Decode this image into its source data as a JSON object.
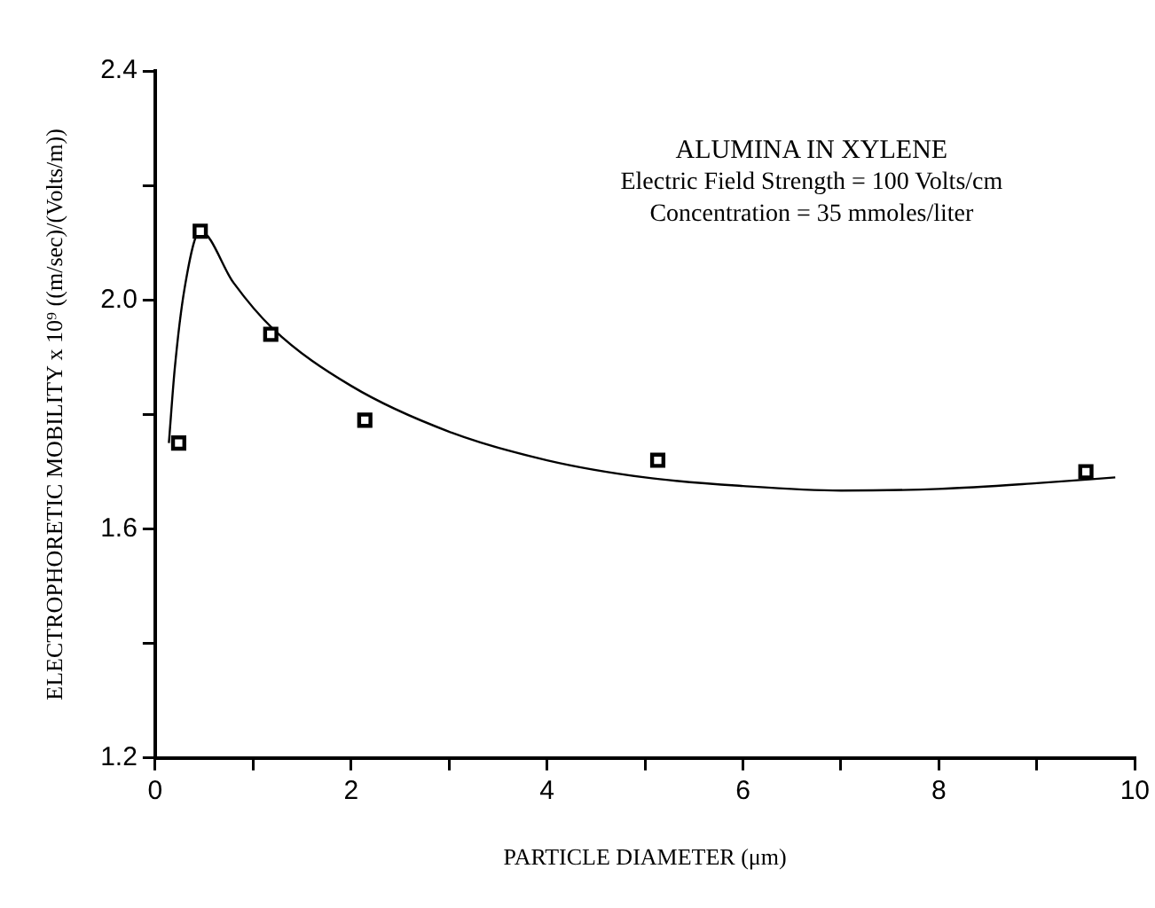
{
  "chart_data": {
    "type": "scatter",
    "xlabel": "PARTICLE DIAMETER (μm)",
    "ylabel": "ELECTROPHORETIC MOBILITY x 10⁹ ((m/sec)/(Volts/m))",
    "annotations": [
      "ALUMINA IN XYLENE",
      "Electric Field Strength = 100 Volts/cm",
      "Concentration = 35 mmoles/liter"
    ],
    "xlim": [
      0,
      10
    ],
    "xticks": [
      0,
      {
        "value": 1,
        "label": null
      },
      2,
      {
        "value": 3,
        "label": null
      },
      4,
      {
        "value": 5,
        "label": null
      },
      6,
      {
        "value": 7,
        "label": null
      },
      8,
      {
        "value": 9,
        "label": null
      },
      10
    ],
    "ylim": [
      1.2,
      2.4
    ],
    "yticks": [
      1.2,
      {
        "value": 1.4,
        "label": null
      },
      1.6,
      {
        "value": 1.8,
        "label": null
      },
      {
        "value": 2,
        "label": "2.0"
      },
      {
        "value": 2.2,
        "label": null
      },
      2.4
    ],
    "grid": false,
    "legend": false,
    "marker": "square",
    "series": [
      {
        "type": "scatter",
        "color": "#000000",
        "x": [
          0.24,
          0.46,
          1.18,
          2.14,
          5.13,
          9.5
        ],
        "values": [
          1.75,
          2.12,
          1.94,
          1.79,
          1.72,
          1.7
        ]
      },
      {
        "type": "line",
        "color": "#000000",
        "marker": "none",
        "line_style": "solid",
        "x": [
          0.14,
          0.2,
          0.3,
          0.46,
          0.8,
          1.2,
          2,
          3,
          4,
          5,
          6,
          7,
          8,
          9,
          9.8
        ],
        "values": [
          1.75,
          1.88,
          2.02,
          2.12,
          2.03,
          1.95,
          1.85,
          1.77,
          1.72,
          1.69,
          1.675,
          1.667,
          1.67,
          1.68,
          1.69
        ]
      }
    ]
  }
}
